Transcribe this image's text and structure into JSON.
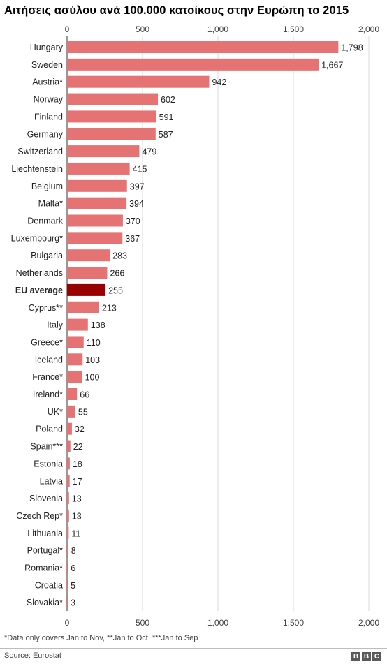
{
  "chart_data": {
    "type": "bar",
    "orientation": "horizontal",
    "title": "Αιτήσεις ασύλου ανά 100.000 κατοίκους στην Ευρώπη το 2015",
    "xlim": [
      0,
      2000
    ],
    "xticks": [
      0,
      500,
      1000,
      1500,
      2000
    ],
    "xtick_labels": [
      "0",
      "500",
      "1,000",
      "1,500",
      "2,000"
    ],
    "grid": "vertical",
    "bar_color": "#e57373",
    "highlight_color": "#990000",
    "highlight_category": "EU average",
    "categories": [
      "Hungary",
      "Sweden",
      "Austria*",
      "Norway",
      "Finland",
      "Germany",
      "Switzerland",
      "Liechtenstein",
      "Belgium",
      "Malta*",
      "Denmark",
      "Luxembourg*",
      "Bulgaria",
      "Netherlands",
      "EU average",
      "Cyprus**",
      "Italy",
      "Greece*",
      "Iceland",
      "France*",
      "Ireland*",
      "UK*",
      "Poland",
      "Spain***",
      "Estonia",
      "Latvia",
      "Slovenia",
      "Czech Rep*",
      "Lithuania",
      "Portugal*",
      "Romania*",
      "Croatia",
      "Slovakia*"
    ],
    "values": [
      1798,
      1667,
      942,
      602,
      591,
      587,
      479,
      415,
      397,
      394,
      370,
      367,
      283,
      266,
      255,
      213,
      138,
      110,
      103,
      100,
      66,
      55,
      32,
      22,
      18,
      17,
      13,
      13,
      11,
      8,
      6,
      5,
      3
    ],
    "value_labels": [
      "1,798",
      "1,667",
      "942",
      "602",
      "591",
      "587",
      "479",
      "415",
      "397",
      "394",
      "370",
      "367",
      "283",
      "266",
      "255",
      "213",
      "138",
      "110",
      "103",
      "100",
      "66",
      "55",
      "32",
      "22",
      "18",
      "17",
      "13",
      "13",
      "11",
      "8",
      "6",
      "5",
      "3"
    ]
  },
  "footnote": "*Data only covers Jan to Nov, **Jan to Oct, ***Jan to Sep",
  "source": "Source: Eurostat",
  "logo": [
    "B",
    "B",
    "C"
  ]
}
